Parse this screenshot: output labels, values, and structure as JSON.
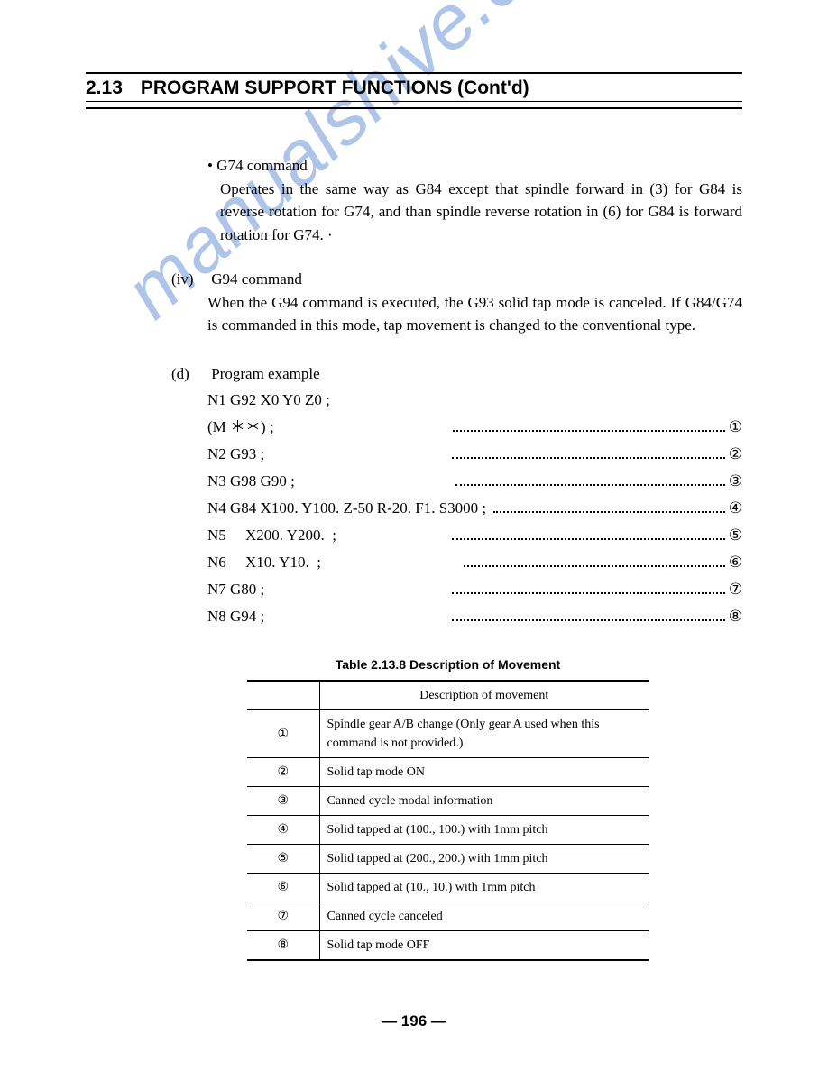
{
  "header": {
    "section_number": "2.13",
    "title": "PROGRAM SUPPORT FUNCTIONS (Cont'd)"
  },
  "watermark": "manualshive.com",
  "bullet": {
    "title": "• G74 command",
    "text": "Operates in the same way as G84 except that spindle forward in (3) for G84  is reverse rotation for G74, and than spindle reverse rotation in (6) for G84 is forward rotation for G74. ·"
  },
  "item_iv": {
    "label": "(iv)",
    "title": "G94 command",
    "text": "When the G94 command is executed, the G93 solid tap mode is canceled. If G84/G74 is commanded in this mode, tap movement is changed to the conventional type."
  },
  "item_d": {
    "label": "(d)",
    "title": "Program example",
    "lines": [
      {
        "code": "N1 G92 X0 Y0 Z0 ;",
        "ref": ""
      },
      {
        "code": "(M ＊＊) ;",
        "ref": "①"
      },
      {
        "code": "N2 G93 ;",
        "ref": "②"
      },
      {
        "code": "N3 G98 G90 ;",
        "ref": "③"
      },
      {
        "code": "N4 G84 X100. Y100. Z-50 R-20. F1. S3000 ;",
        "ref": "④"
      },
      {
        "code": "N5     X200. Y200.  ;",
        "ref": "⑤"
      },
      {
        "code": "N6     X10. Y10.  ;",
        "ref": "⑥"
      },
      {
        "code": "N7 G80 ;",
        "ref": "⑦"
      },
      {
        "code": "N8 G94 ;",
        "ref": "⑧"
      }
    ]
  },
  "table": {
    "caption": "Table 2.13.8   Description of Movement",
    "header_col2": "Description of movement",
    "rows": [
      {
        "num": "①",
        "desc": "Spindle gear A/B change (Only gear A used when this command is not provided.)"
      },
      {
        "num": "②",
        "desc": "Solid tap mode ON"
      },
      {
        "num": "③",
        "desc": "Canned cycle modal information"
      },
      {
        "num": "④",
        "desc": "Solid tapped at (100., 100.) with 1mm pitch"
      },
      {
        "num": "⑤",
        "desc": "Solid tapped at (200., 200.) with 1mm pitch"
      },
      {
        "num": "⑥",
        "desc": "Solid tapped at (10., 10.) with 1mm pitch"
      },
      {
        "num": "⑦",
        "desc": "Canned cycle canceled"
      },
      {
        "num": "⑧",
        "desc": "Solid tap mode OFF"
      }
    ]
  },
  "page_number": "— 196 —"
}
